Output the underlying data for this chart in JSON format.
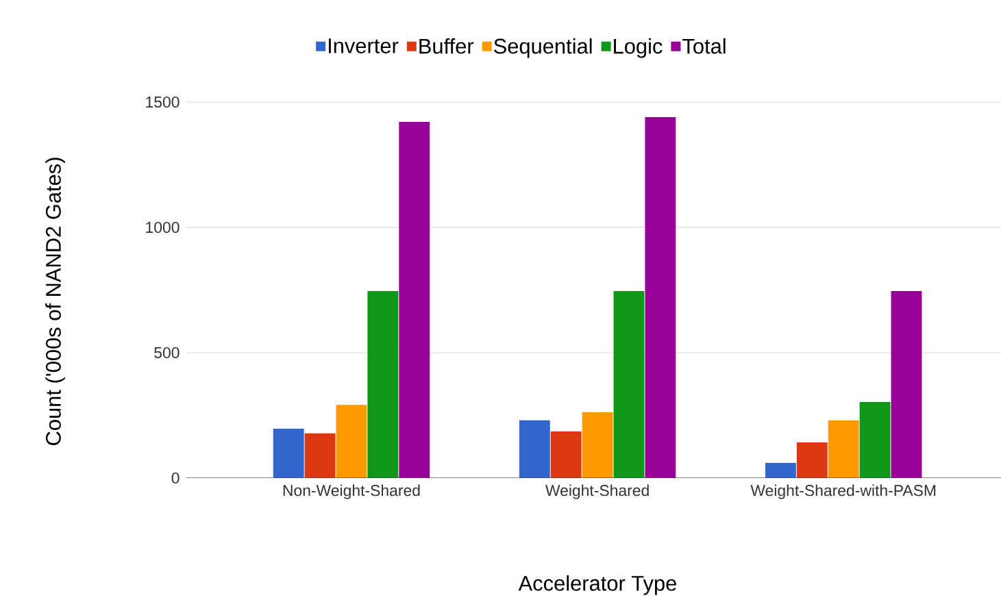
{
  "chart_data": {
    "type": "bar",
    "categories": [
      "Non-Weight-Shared",
      "Weight-Shared",
      "Weight-Shared-with-PASM"
    ],
    "series": [
      {
        "name": "Inverter",
        "color": "#3366cc",
        "values": [
          197,
          230,
          60
        ]
      },
      {
        "name": "Buffer",
        "color": "#dc3912",
        "values": [
          178,
          186,
          142
        ]
      },
      {
        "name": "Sequential",
        "color": "#ff9900",
        "values": [
          292,
          262,
          230
        ]
      },
      {
        "name": "Logic",
        "color": "#109618",
        "values": [
          746,
          746,
          303
        ]
      },
      {
        "name": "Total",
        "color": "#990099",
        "values": [
          1421,
          1440,
          746
        ]
      }
    ],
    "xlabel": "Accelerator Type",
    "ylabel": "Count ('000s of NAND2 Gates)",
    "ylim": [
      0,
      1500
    ],
    "yticks": [
      0,
      500,
      1000,
      1500
    ],
    "grid": "y",
    "legend": "top"
  }
}
